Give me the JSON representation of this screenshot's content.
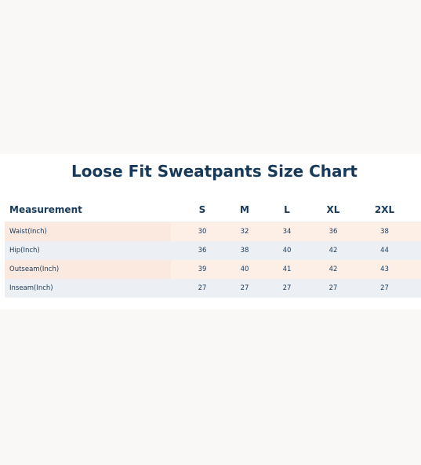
{
  "title": "Loose Fit Sweatpants Size Chart",
  "table": {
    "headers": [
      "Measurement",
      "S",
      "M",
      "L",
      "XL",
      "2XL"
    ],
    "rows": [
      {
        "label": "Waist(Inch)",
        "values": [
          "30",
          "32",
          "34",
          "36",
          "38"
        ]
      },
      {
        "label": "Hip(Inch)",
        "values": [
          "36",
          "38",
          "40",
          "42",
          "44"
        ]
      },
      {
        "label": "Outseam(Inch)",
        "values": [
          "39",
          "40",
          "41",
          "42",
          "43"
        ]
      },
      {
        "label": "Inseam(Inch)",
        "values": [
          "27",
          "27",
          "27",
          "27",
          "27"
        ]
      }
    ]
  },
  "colors": {
    "title": "#173a5a",
    "row_peach": "#fdeee6",
    "row_gray": "#eceff3"
  }
}
